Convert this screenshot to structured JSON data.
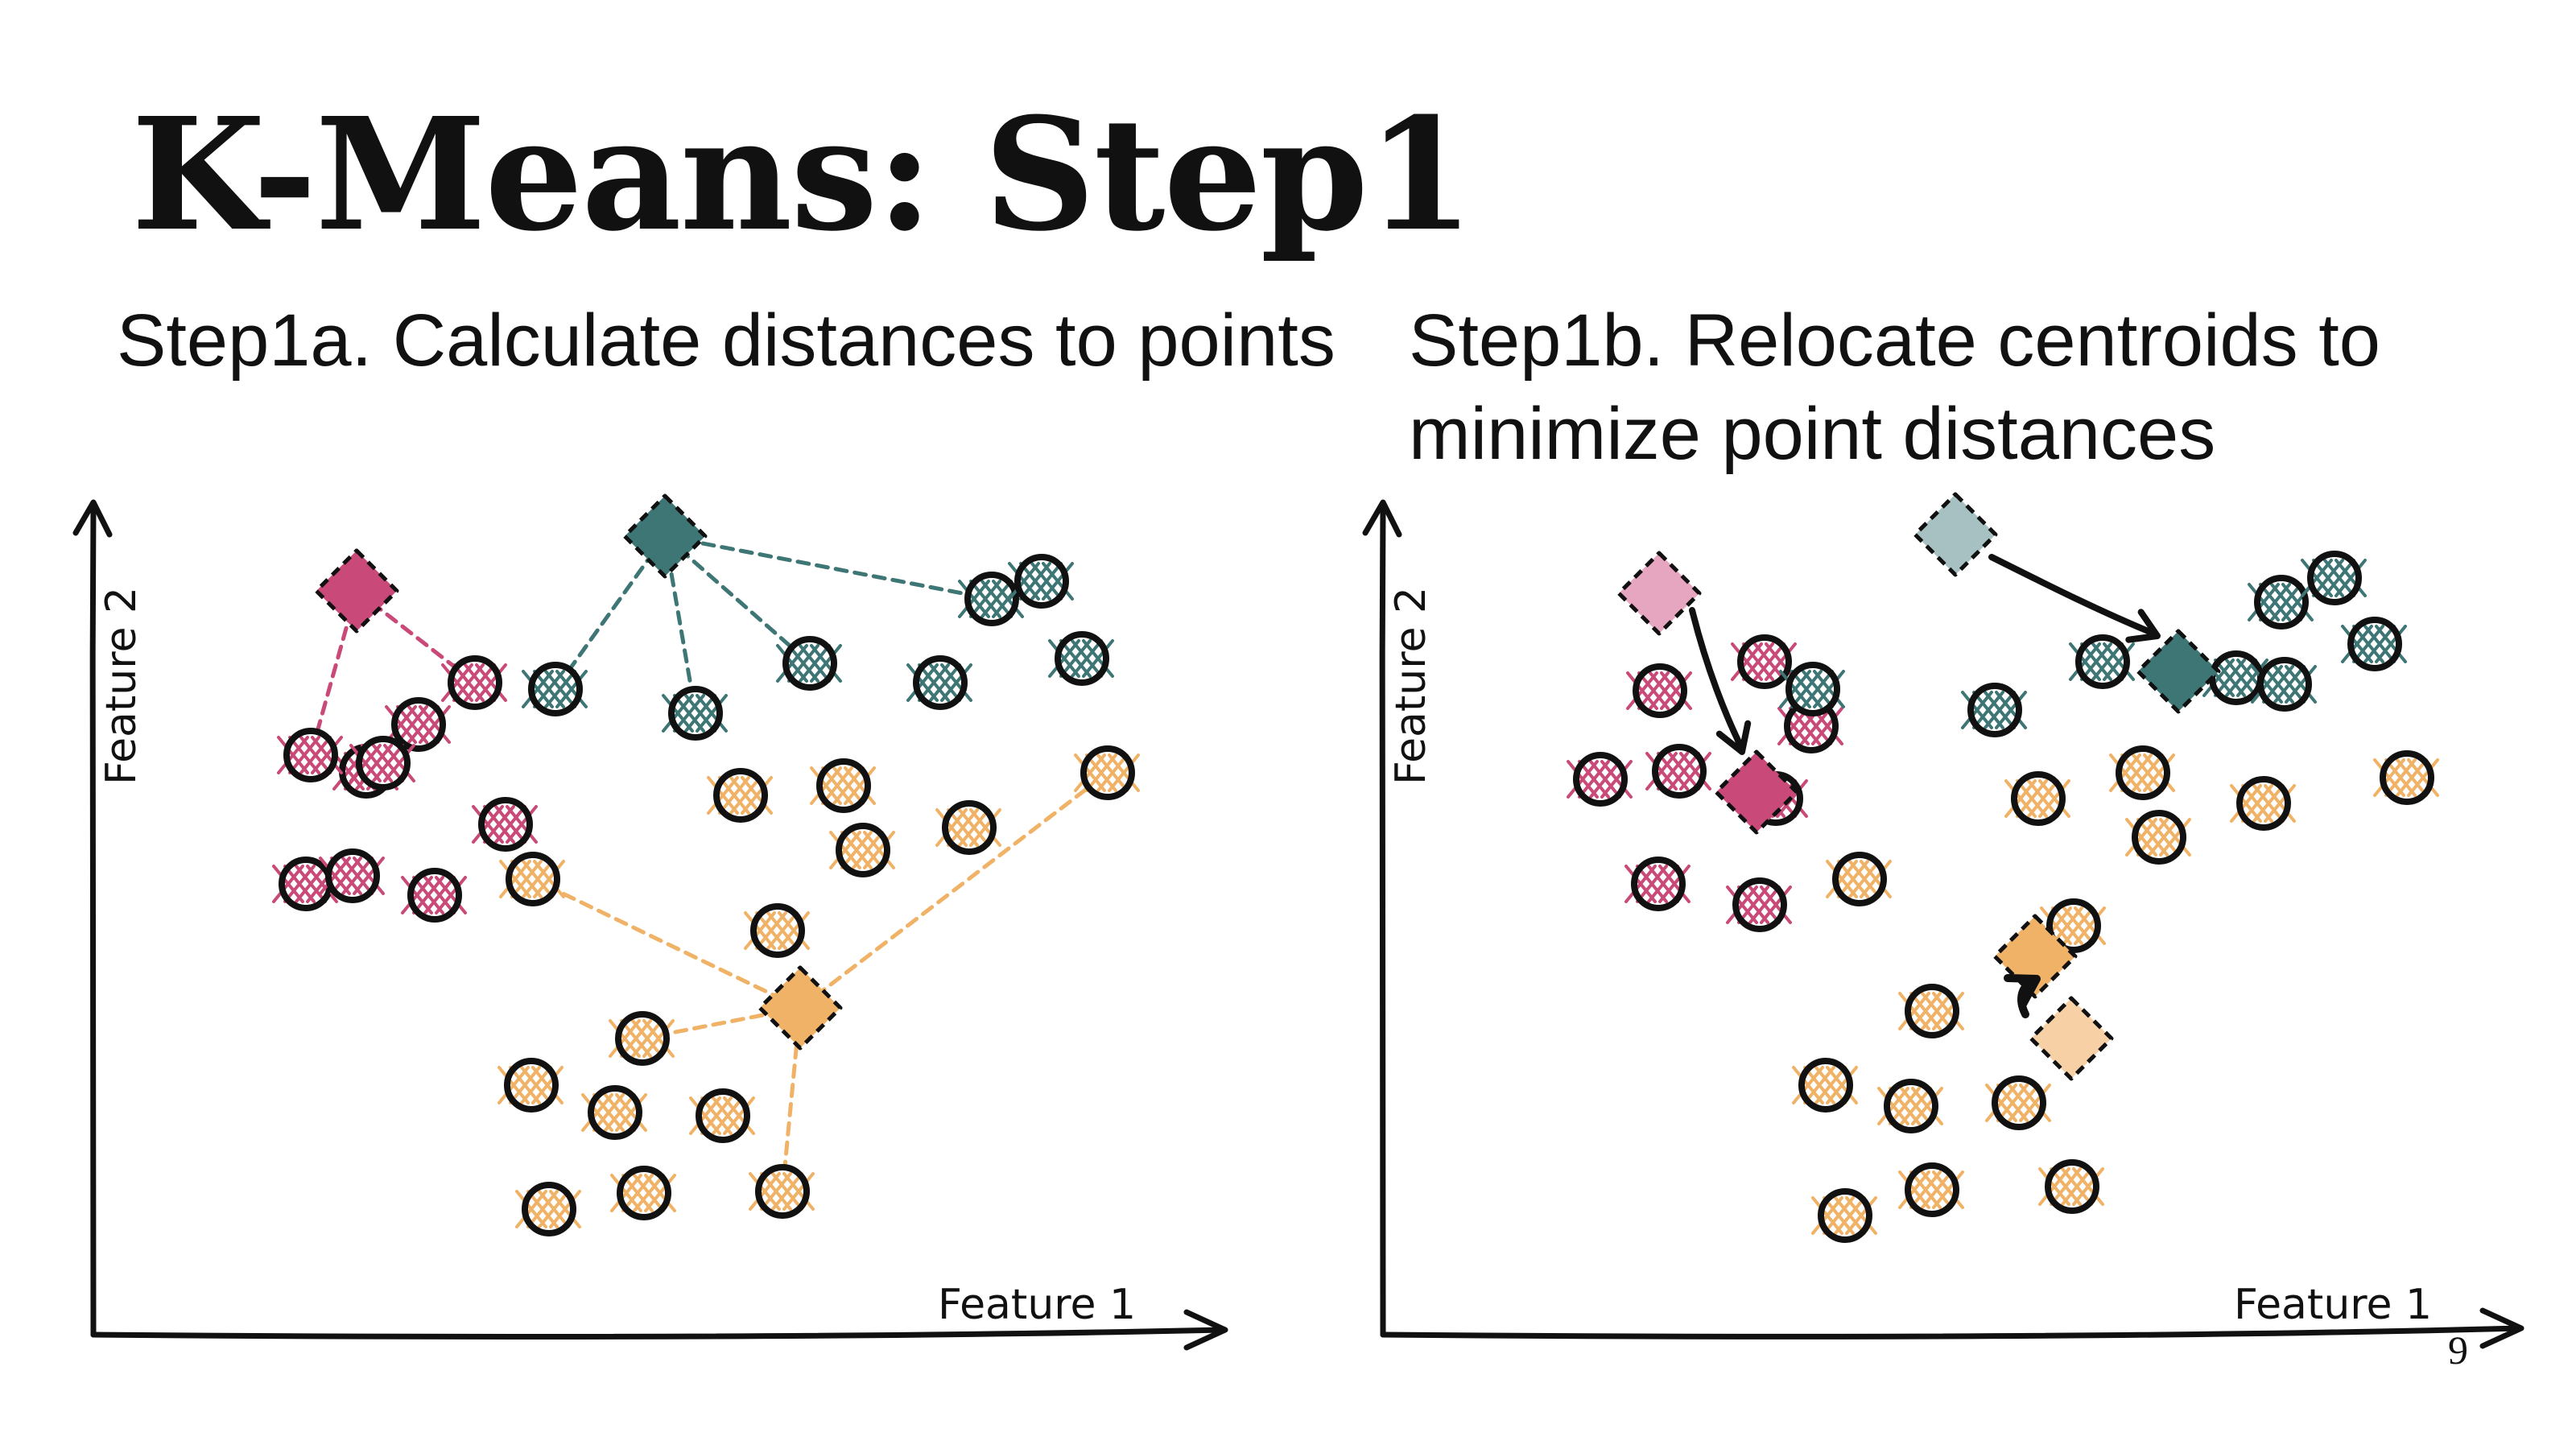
{
  "slide": {
    "title": "K-Means: Step1",
    "step1a": "Step1a. Calculate distances to points",
    "step1b_line1": "Step1b. Relocate centroids to",
    "step1b_line2": "minimize point distances",
    "page_number": "9"
  },
  "axes": {
    "x_label": "Feature 1",
    "y_label": "Feature 2"
  },
  "colors": {
    "pink": "#c94a78",
    "teal": "#3e7675",
    "orange": "#f0b266",
    "pink_light": "#e7a6bf",
    "teal_light": "#a7c1c2",
    "orange_light": "#f7d1a5",
    "ink": "#111111"
  },
  "icons": {
    "point": "circle-with-crosshatch",
    "centroid": "diamond-centroid",
    "move": "arrow-icon"
  }
}
